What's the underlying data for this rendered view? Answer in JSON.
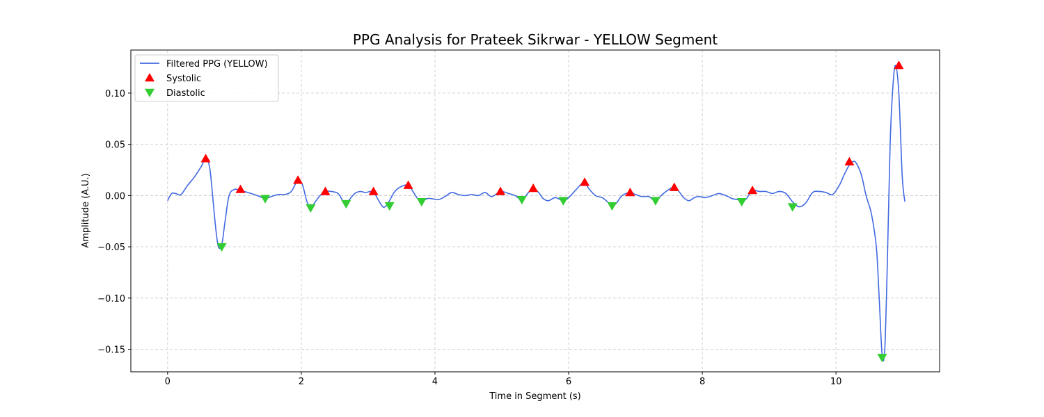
{
  "chart_data": {
    "type": "line",
    "title": "PPG Analysis for Prateek Sikrwar - YELLOW Segment",
    "xlabel": "Time in Segment (s)",
    "ylabel": "Amplitude (A.U.)",
    "xlim": [
      -0.55,
      11.55
    ],
    "ylim": [
      -0.172,
      0.142
    ],
    "x_ticks": [
      0,
      2,
      4,
      6,
      8,
      10
    ],
    "x_tick_labels": [
      "0",
      "2",
      "4",
      "6",
      "8",
      "10"
    ],
    "y_ticks": [
      -0.15,
      -0.1,
      -0.05,
      0.0,
      0.05,
      0.1
    ],
    "y_tick_labels": [
      "−0.15",
      "−0.10",
      "−0.05",
      "0.00",
      "0.05",
      "0.10"
    ],
    "grid": true,
    "legend_position": "top-left",
    "series": [
      {
        "name": "Filtered PPG (YELLOW)",
        "kind": "line",
        "color": "#4169E1",
        "x": [
          0.0,
          0.06,
          0.12,
          0.2,
          0.3,
          0.4,
          0.5,
          0.57,
          0.63,
          0.68,
          0.72,
          0.76,
          0.81,
          0.86,
          0.92,
          1.0,
          1.09,
          1.2,
          1.3,
          1.38,
          1.46,
          1.55,
          1.65,
          1.75,
          1.85,
          1.95,
          2.02,
          2.08,
          2.14,
          2.2,
          2.28,
          2.36,
          2.45,
          2.55,
          2.62,
          2.67,
          2.72,
          2.8,
          2.88,
          2.96,
          3.03,
          3.08,
          3.15,
          3.22,
          3.27,
          3.32,
          3.4,
          3.5,
          3.6,
          3.68,
          3.75,
          3.8,
          3.88,
          3.95,
          4.05,
          4.15,
          4.25,
          4.35,
          4.45,
          4.55,
          4.65,
          4.75,
          4.85,
          4.98,
          5.1,
          5.2,
          5.3,
          5.4,
          5.47,
          5.55,
          5.62,
          5.7,
          5.8,
          5.92,
          6.0,
          6.1,
          6.2,
          6.24,
          6.3,
          6.4,
          6.5,
          6.58,
          6.65,
          6.72,
          6.8,
          6.92,
          7.0,
          7.1,
          7.2,
          7.3,
          7.4,
          7.5,
          7.58,
          7.65,
          7.72,
          7.8,
          7.88,
          7.95,
          8.05,
          8.15,
          8.25,
          8.35,
          8.45,
          8.53,
          8.59,
          8.66,
          8.75,
          8.85,
          8.95,
          9.05,
          9.15,
          9.25,
          9.35,
          9.45,
          9.55,
          9.65,
          9.75,
          9.85,
          9.95,
          10.05,
          10.12,
          10.2,
          10.25,
          10.3,
          10.38,
          10.45,
          10.52,
          10.57,
          10.61,
          10.65,
          10.69,
          10.73,
          10.77,
          10.81,
          10.85,
          10.89,
          10.94,
          10.99,
          11.03
        ],
        "y": [
          -0.005,
          0.002,
          0.002,
          0.001,
          0.01,
          0.018,
          0.028,
          0.036,
          0.027,
          -0.005,
          -0.032,
          -0.05,
          -0.048,
          -0.025,
          0.0,
          0.006,
          0.005,
          0.003,
          0.001,
          -0.001,
          -0.003,
          -0.001,
          0.001,
          0.001,
          0.004,
          0.015,
          0.01,
          -0.005,
          -0.012,
          -0.007,
          0.0,
          0.004,
          0.004,
          0.002,
          -0.005,
          -0.008,
          -0.004,
          0.002,
          0.004,
          0.003,
          0.004,
          0.004,
          -0.004,
          -0.011,
          -0.01,
          -0.005,
          0.004,
          0.009,
          0.01,
          0.003,
          -0.004,
          -0.006,
          -0.003,
          -0.003,
          -0.004,
          -0.001,
          0.003,
          0.001,
          0.0,
          0.001,
          0.0,
          0.003,
          -0.001,
          0.004,
          0.002,
          0.0,
          -0.004,
          0.003,
          0.007,
          0.003,
          -0.003,
          -0.005,
          -0.002,
          -0.005,
          -0.002,
          0.005,
          0.012,
          0.013,
          0.007,
          0.0,
          -0.002,
          -0.006,
          -0.01,
          -0.007,
          0.0,
          0.003,
          0.001,
          -0.001,
          -0.001,
          -0.005,
          0.001,
          0.006,
          0.008,
          0.004,
          -0.002,
          -0.005,
          -0.002,
          -0.001,
          -0.002,
          0.0,
          0.002,
          0.0,
          -0.003,
          -0.004,
          -0.006,
          -0.003,
          0.005,
          0.004,
          0.004,
          0.002,
          0.004,
          0.002,
          -0.006,
          -0.011,
          -0.007,
          0.003,
          0.004,
          0.003,
          0.001,
          0.01,
          0.02,
          0.03,
          0.033,
          0.032,
          0.02,
          0.0,
          -0.015,
          -0.033,
          -0.055,
          -0.105,
          -0.155,
          -0.15,
          -0.06,
          0.05,
          0.105,
          0.127,
          0.1,
          0.02,
          -0.006
        ]
      },
      {
        "name": "Systolic",
        "kind": "marker-up",
        "color": "#FF0000",
        "x": [
          0.57,
          1.09,
          1.95,
          2.36,
          3.08,
          3.6,
          4.98,
          5.47,
          6.24,
          6.92,
          7.58,
          8.75,
          10.2,
          10.94
        ],
        "y": [
          0.036,
          0.006,
          0.015,
          0.004,
          0.004,
          0.01,
          0.004,
          0.007,
          0.013,
          0.003,
          0.008,
          0.005,
          0.033,
          0.127
        ]
      },
      {
        "name": "Diastolic",
        "kind": "marker-down",
        "color": "#32CD32",
        "x": [
          0.81,
          1.46,
          2.14,
          2.67,
          3.32,
          3.8,
          5.3,
          5.92,
          6.65,
          7.3,
          8.59,
          9.35,
          10.69
        ],
        "y": [
          -0.05,
          -0.003,
          -0.012,
          -0.008,
          -0.01,
          -0.006,
          -0.004,
          -0.005,
          -0.01,
          -0.005,
          -0.006,
          -0.011,
          -0.158
        ]
      }
    ]
  }
}
